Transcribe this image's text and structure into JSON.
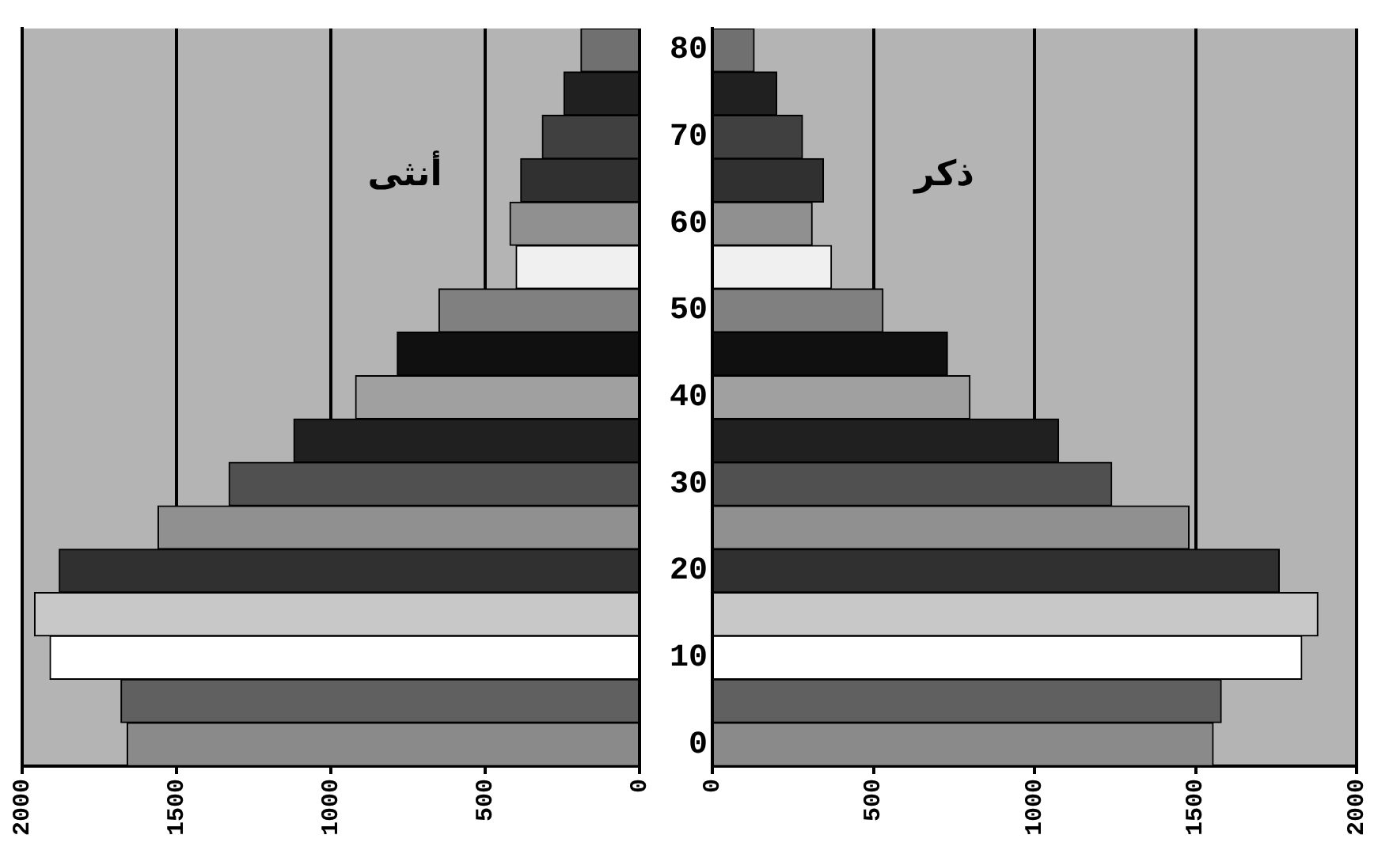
{
  "chart_data": [
    {
      "type": "bar",
      "orientation": "horizontal",
      "categories": [
        "80",
        null,
        "70",
        null,
        "60",
        null,
        "50",
        null,
        "40",
        null,
        "30",
        null,
        "20",
        null,
        "10",
        null,
        "0"
      ],
      "values": [
        190,
        245,
        315,
        385,
        420,
        400,
        650,
        785,
        920,
        1120,
        1330,
        1560,
        1880,
        1960,
        1910,
        1680,
        1660
      ],
      "colors": [
        "#707070",
        "#202020",
        "#404040",
        "#303030",
        "#909090",
        "#f0f0f0",
        "#808080",
        "#101010",
        "#a0a0a0",
        "#202020",
        "#505050",
        "#909090",
        "#303030",
        "#c8c8c8",
        "#ffffff",
        "#606060",
        "#8a8a8a"
      ],
      "xlim": [
        2000,
        0
      ],
      "xticks": [
        2000,
        1500,
        1000,
        500,
        0
      ],
      "grid": "x",
      "tick_labels": "x",
      "annotations": [
        "أنثى"
      ]
    },
    {
      "type": "bar",
      "orientation": "horizontal",
      "categories": [
        "80",
        null,
        "70",
        null,
        "60",
        null,
        "50",
        null,
        "40",
        null,
        "30",
        null,
        "20",
        null,
        "10",
        null,
        "0"
      ],
      "values": [
        130,
        200,
        280,
        345,
        310,
        370,
        530,
        730,
        800,
        1075,
        1240,
        1480,
        1760,
        1880,
        1830,
        1580,
        1555
      ],
      "colors": [
        "#707070",
        "#202020",
        "#404040",
        "#303030",
        "#909090",
        "#f0f0f0",
        "#808080",
        "#101010",
        "#a0a0a0",
        "#202020",
        "#505050",
        "#909090",
        "#303030",
        "#c8c8c8",
        "#ffffff",
        "#606060",
        "#8a8a8a"
      ],
      "xlim": [
        0,
        2000
      ],
      "xticks": [
        0,
        500,
        1000,
        1500,
        2000
      ],
      "grid": "x",
      "annotations": [
        "ذكر"
      ]
    }
  ]
}
